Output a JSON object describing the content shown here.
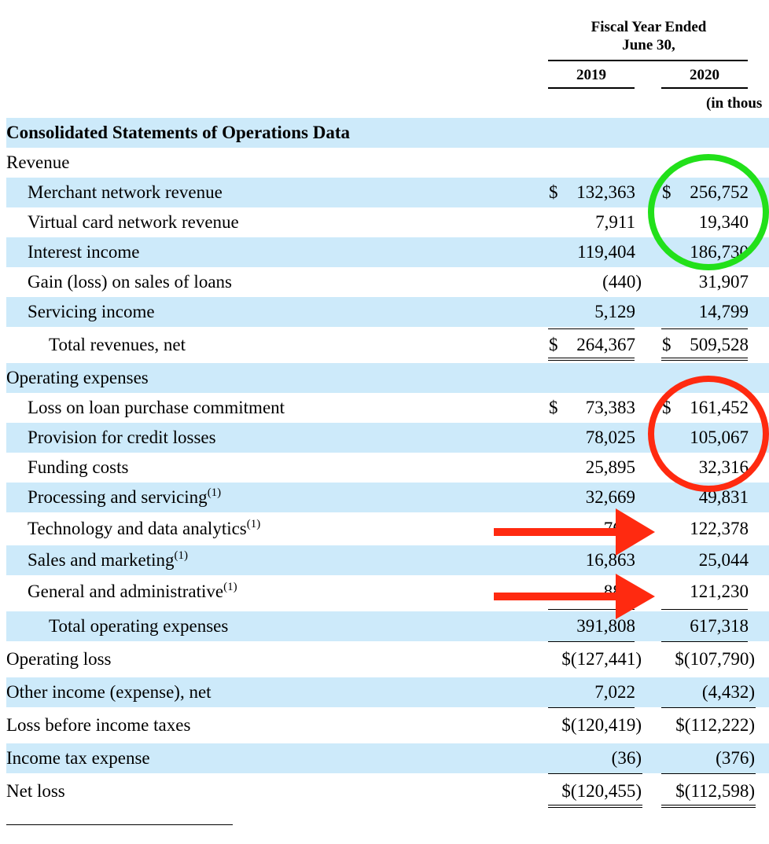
{
  "header": {
    "period_line1": "Fiscal Year Ended",
    "period_line2": "June 30,",
    "year1": "2019",
    "year2": "2020",
    "units": "(in thous"
  },
  "section_title": "Consolidated Statements of Operations Data",
  "rows": [
    {
      "label": "Revenue",
      "sup": "",
      "v1": "",
      "v2": "",
      "d1": "",
      "d2": ""
    },
    {
      "label": "Merchant network revenue",
      "sup": "",
      "v1": "132,363",
      "v2": "256,752",
      "d1": "$",
      "d2": "$"
    },
    {
      "label": "Virtual card network revenue",
      "sup": "",
      "v1": "7,911",
      "v2": "19,340",
      "d1": "",
      "d2": ""
    },
    {
      "label": "Interest income",
      "sup": "",
      "v1": "119,404",
      "v2": "186,730",
      "d1": "",
      "d2": ""
    },
    {
      "label": "Gain (loss) on sales of loans",
      "sup": "",
      "v1": "(440)",
      "v2": "31,907",
      "d1": "",
      "d2": ""
    },
    {
      "label": "Servicing income",
      "sup": "",
      "v1": "5,129",
      "v2": "14,799",
      "d1": "",
      "d2": ""
    },
    {
      "label": "Total revenues, net",
      "sup": "",
      "v1": "264,367",
      "v2": "509,528",
      "d1": "$",
      "d2": "$"
    },
    {
      "label": "Operating expenses",
      "sup": "",
      "v1": "",
      "v2": "",
      "d1": "",
      "d2": ""
    },
    {
      "label": "Loss on loan purchase commitment",
      "sup": "",
      "v1": "73,383",
      "v2": "161,452",
      "d1": "$",
      "d2": "$"
    },
    {
      "label": "Provision for credit losses",
      "sup": "",
      "v1": "78,025",
      "v2": "105,067",
      "d1": "",
      "d2": ""
    },
    {
      "label": "Funding costs",
      "sup": "",
      "v1": "25,895",
      "v2": "32,316",
      "d1": "",
      "d2": ""
    },
    {
      "label": "Processing and servicing",
      "sup": "(1)",
      "v1": "32,669",
      "v2": "49,831",
      "d1": "",
      "d2": ""
    },
    {
      "label": "Technology and data analytics",
      "sup": "(1)",
      "v1": "76,0",
      "v2": "122,378",
      "d1": "",
      "d2": ""
    },
    {
      "label": "Sales and marketing",
      "sup": "(1)",
      "v1": "16,863",
      "v2": "25,044",
      "d1": "",
      "d2": ""
    },
    {
      "label": "General and administrative",
      "sup": "(1)",
      "v1": "88,9",
      "v2": "121,230",
      "d1": "",
      "d2": ""
    },
    {
      "label": "Total operating expenses",
      "sup": "",
      "v1": "391,808",
      "v2": "617,318",
      "d1": "",
      "d2": ""
    },
    {
      "label": "Operating loss",
      "sup": "",
      "v1": "$(127,441)",
      "v2": "$(107,790)",
      "d1": "",
      "d2": ""
    },
    {
      "label": "Other income (expense), net",
      "sup": "",
      "v1": "7,022",
      "v2": "(4,432)",
      "d1": "",
      "d2": ""
    },
    {
      "label": "Loss before income taxes",
      "sup": "",
      "v1": "$(120,419)",
      "v2": "$(112,222)",
      "d1": "",
      "d2": ""
    },
    {
      "label": "Income tax expense",
      "sup": "",
      "v1": "(36)",
      "v2": "(376)",
      "d1": "",
      "d2": ""
    },
    {
      "label": "Net loss",
      "sup": "",
      "v1": "$(120,455)",
      "v2": "$(112,598)",
      "d1": "",
      "d2": ""
    }
  ],
  "annotations": {
    "circle_green_color": "#22e01a",
    "circle_red_color": "#ff2a10",
    "arrow_color": "#ff2a10"
  }
}
